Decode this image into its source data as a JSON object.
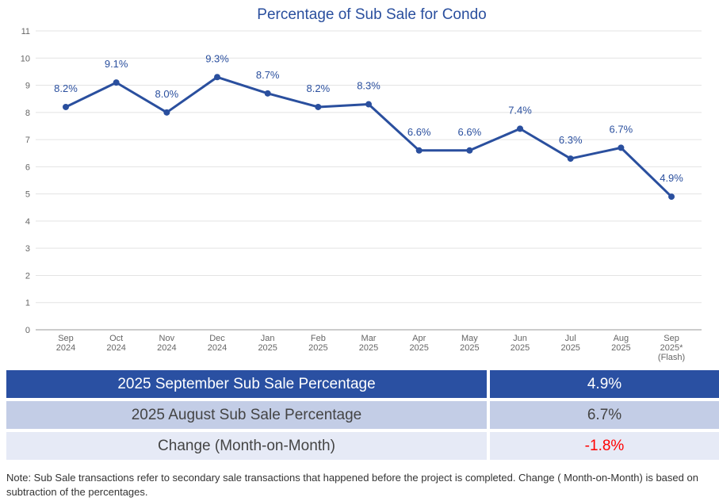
{
  "chart_data": {
    "type": "line",
    "title": "Percentage of Sub Sale for Condo",
    "categories": [
      [
        "Sep",
        "2024"
      ],
      [
        "Oct",
        "2024"
      ],
      [
        "Nov",
        "2024"
      ],
      [
        "Dec",
        "2024"
      ],
      [
        "Jan",
        "2025"
      ],
      [
        "Feb",
        "2025"
      ],
      [
        "Mar",
        "2025"
      ],
      [
        "Apr",
        "2025"
      ],
      [
        "May",
        "2025"
      ],
      [
        "Jun",
        "2025"
      ],
      [
        "Jul",
        "2025"
      ],
      [
        "Aug",
        "2025"
      ],
      [
        "Sep",
        "2025*",
        "(Flash)"
      ]
    ],
    "values": [
      8.2,
      9.1,
      8.0,
      9.3,
      8.7,
      8.2,
      8.3,
      6.6,
      6.6,
      7.4,
      6.3,
      6.7,
      4.9
    ],
    "data_labels": [
      "8.2%",
      "9.1%",
      "8.0%",
      "9.3%",
      "8.7%",
      "8.2%",
      "8.3%",
      "6.6%",
      "6.6%",
      "7.4%",
      "6.3%",
      "6.7%",
      "4.9%"
    ],
    "ylim": [
      0,
      11
    ],
    "yticks": [
      "0",
      "1",
      "2",
      "3",
      "4",
      "5",
      "6",
      "7",
      "8",
      "9",
      "10",
      "11"
    ],
    "grid": true,
    "line_color": "#2a4f9e"
  },
  "summary": {
    "rows": [
      {
        "label": "2025 September Sub Sale Percentage",
        "value": "4.9%"
      },
      {
        "label": "2025 August Sub Sale Percentage",
        "value": "6.7%"
      },
      {
        "label": "Change (Month-on-Month)",
        "value": "-1.8%",
        "value_color": "#ff0000"
      }
    ]
  },
  "note": "Note: Sub Sale transactions refer to secondary sale transactions that happened before the project is completed. Change ( Month-on-Month) is based on subtraction of the percentages."
}
